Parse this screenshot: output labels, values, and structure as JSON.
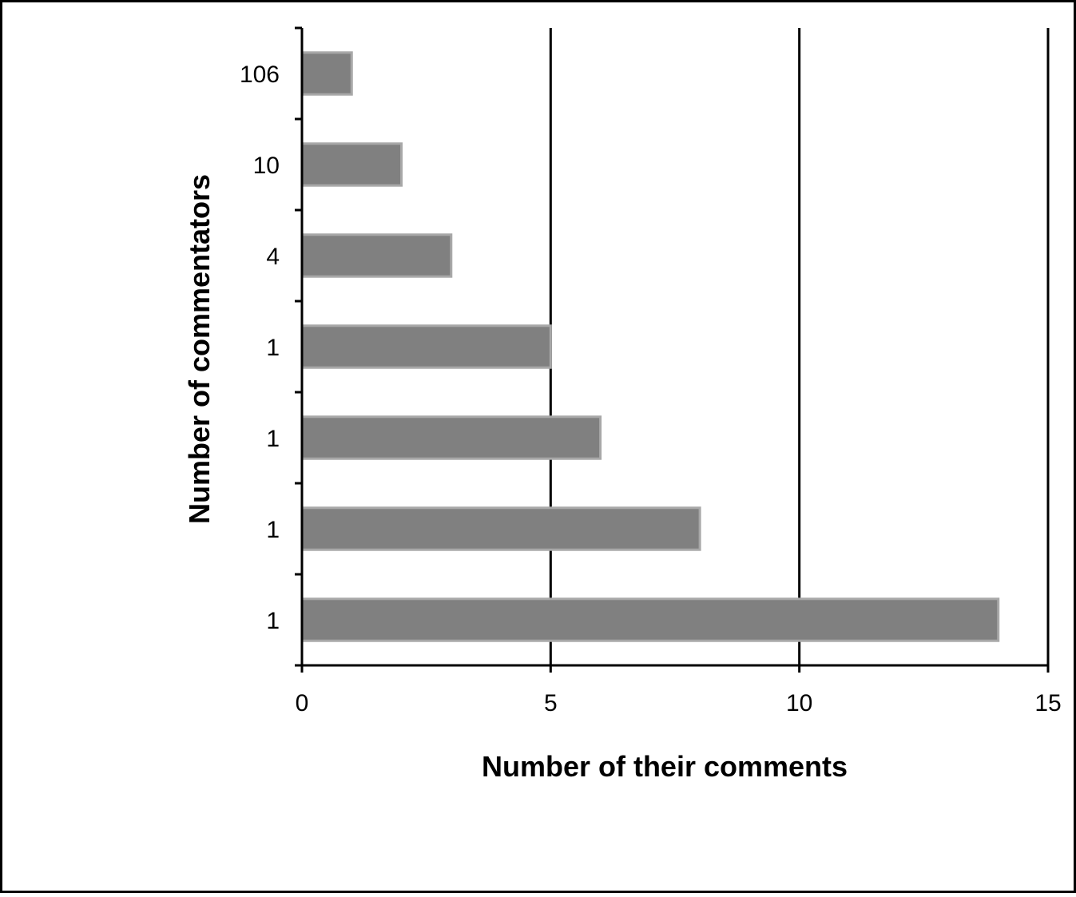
{
  "chart_data": {
    "type": "bar",
    "orientation": "horizontal",
    "categories": [
      "106",
      "10",
      "4",
      "1",
      "1",
      "1",
      "1"
    ],
    "values": [
      1,
      2,
      3,
      5,
      6,
      8,
      14
    ],
    "xlabel": "Number of their comments",
    "ylabel": "Number of commentators",
    "xlim": [
      0,
      15
    ],
    "xticks": [
      0,
      5,
      10,
      15
    ],
    "grid": "vertical major gridlines",
    "legend": "none",
    "colors": {
      "bar_fill": "#808080",
      "bar_edge": "#a8a8a8",
      "axis": "#000000",
      "grid": "#000000",
      "background": "#ffffff"
    }
  }
}
